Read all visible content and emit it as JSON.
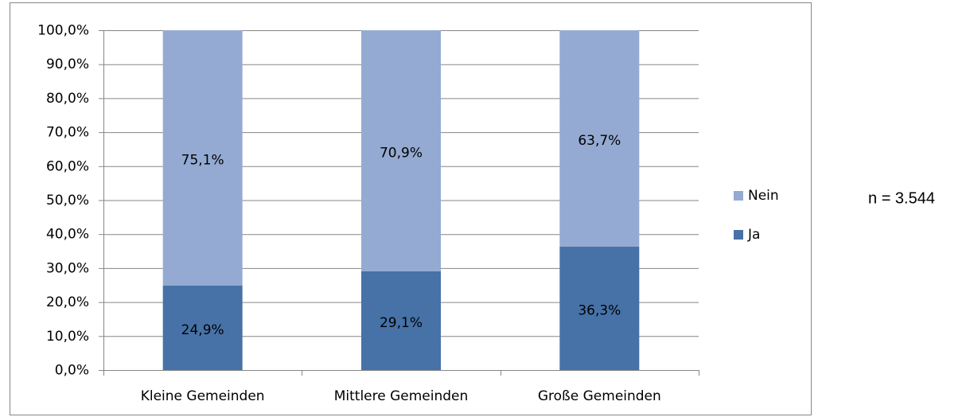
{
  "chart_data": {
    "type": "stacked_bar",
    "categories": [
      "Kleine Gemeinden",
      "Mittlere Gemeinden",
      "Große Gemeinden"
    ],
    "series": [
      {
        "name": "Ja",
        "color": "#4772a8",
        "values": [
          24.9,
          29.1,
          36.3
        ],
        "value_labels": [
          "24,9%",
          "29,1%",
          "36,3%"
        ]
      },
      {
        "name": "Nein",
        "color": "#95aad2",
        "values": [
          75.1,
          70.9,
          63.7
        ],
        "value_labels": [
          "75,1%",
          "70,9%",
          "63,7%"
        ]
      }
    ],
    "ylim": [
      0,
      100
    ],
    "yticks": [
      {
        "value": 0,
        "label": "0,0%"
      },
      {
        "value": 10,
        "label": "10,0%"
      },
      {
        "value": 20,
        "label": "20,0%"
      },
      {
        "value": 30,
        "label": "30,0%"
      },
      {
        "value": 40,
        "label": "40,0%"
      },
      {
        "value": 50,
        "label": "50,0%"
      },
      {
        "value": 60,
        "label": "60,0%"
      },
      {
        "value": 70,
        "label": "70,0%"
      },
      {
        "value": 80,
        "label": "80,0%"
      },
      {
        "value": 90,
        "label": "90,0%"
      },
      {
        "value": 100,
        "label": "100,0%"
      }
    ],
    "grid": true,
    "legend": "right",
    "annotation": "n = 3.544"
  }
}
